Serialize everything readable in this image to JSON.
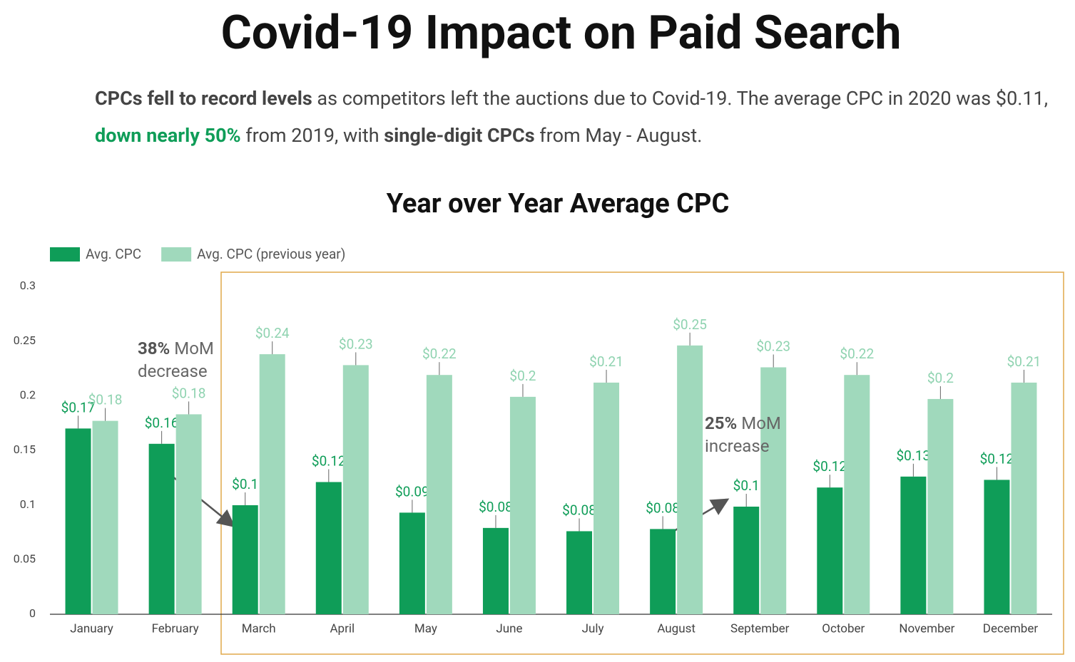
{
  "header": {
    "title": "Covid-19 Impact on Paid Search",
    "subtitle_parts": [
      {
        "text": "CPCs fell to record levels",
        "style": "bold"
      },
      {
        "text": " as competitors left the auctions due to Covid-19. The average CPC in 2020 was $0.11, ",
        "style": "normal"
      },
      {
        "text": "down nearly 50%",
        "style": "bold-green"
      },
      {
        "text": " from 2019, with ",
        "style": "normal"
      },
      {
        "text": "single-digit CPCs",
        "style": "bold"
      },
      {
        "text": " from May - August.",
        "style": "normal"
      }
    ]
  },
  "chart_data": {
    "type": "bar",
    "title": "Year over Year Average CPC",
    "categories": [
      "January",
      "February",
      "March",
      "April",
      "May",
      "June",
      "July",
      "August",
      "September",
      "October",
      "November",
      "December"
    ],
    "series": [
      {
        "name": "Avg. CPC",
        "color": "#0f9d58",
        "label_color": "#0f9d58",
        "values": [
          0.17,
          0.156,
          0.0998,
          0.121,
          0.093,
          0.079,
          0.076,
          0.078,
          0.0985,
          0.116,
          0.126,
          0.123
        ],
        "value_labels": [
          "$0.17",
          "$0.16",
          "$0.1",
          "$0.12",
          "$0.09",
          "$0.08",
          "$0.08",
          "$0.08",
          "$0.1",
          "$0.12",
          "$0.13",
          "$0.12"
        ]
      },
      {
        "name": "Avg. CPC (previous year)",
        "color": "#a0d9bc",
        "label_color": "#8fd3b0",
        "values": [
          0.177,
          0.183,
          0.238,
          0.228,
          0.219,
          0.199,
          0.212,
          0.246,
          0.226,
          0.219,
          0.197,
          0.212
        ],
        "value_labels": [
          "$0.18",
          "$0.18",
          "$0.24",
          "$0.23",
          "$0.22",
          "$0.2",
          "$0.21",
          "$0.25",
          "$0.23",
          "$0.22",
          "$0.2",
          "$0.21"
        ]
      }
    ],
    "ylim": [
      0,
      0.3
    ],
    "yticks": [
      0,
      0.05,
      0.1,
      0.15,
      0.2,
      0.25,
      0.3
    ],
    "legend": "top-left",
    "annotations": [
      {
        "bold": "38%",
        "text": "MoM decrease"
      },
      {
        "bold": "25%",
        "text": "MoM increase"
      }
    ]
  }
}
